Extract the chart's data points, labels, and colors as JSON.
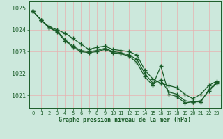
{
  "title": "Graphe pression niveau de la mer (hPa)",
  "ylim": [
    1020.4,
    1025.3
  ],
  "yticks": [
    1021,
    1022,
    1023,
    1024,
    1025
  ],
  "xlim": [
    -0.5,
    23.5
  ],
  "background_color": "#cce8dc",
  "plot_bg_color": "#cce8dc",
  "grid_color": "#b0d8c8",
  "line_color": "#1a5c28",
  "line1": [
    1024.85,
    1024.45,
    1024.15,
    1024.0,
    1023.85,
    1023.6,
    1023.35,
    1023.1,
    1023.2,
    1023.25,
    1023.1,
    1023.05,
    1023.0,
    1022.85,
    1022.15,
    1021.75,
    1021.55,
    1021.45,
    1021.35,
    1021.05,
    1020.85,
    1021.05,
    1021.45,
    1021.65
  ],
  "line2": [
    1024.85,
    1024.45,
    1024.1,
    1023.95,
    1023.55,
    1023.25,
    1023.05,
    1023.0,
    1023.05,
    1023.15,
    1023.0,
    1022.95,
    1022.85,
    1022.65,
    1022.0,
    1021.55,
    1021.7,
    1021.15,
    1021.05,
    1020.75,
    1020.7,
    1020.7,
    1021.25,
    1021.6
  ],
  "line3": [
    1024.85,
    1024.45,
    1024.1,
    1023.9,
    1023.5,
    1023.2,
    1023.0,
    1022.95,
    1023.0,
    1023.1,
    1022.95,
    1022.9,
    1022.8,
    1022.5,
    1021.85,
    1021.45,
    1022.35,
    1021.05,
    1020.95,
    1020.65,
    1020.7,
    1020.75,
    1021.2,
    1021.55
  ]
}
